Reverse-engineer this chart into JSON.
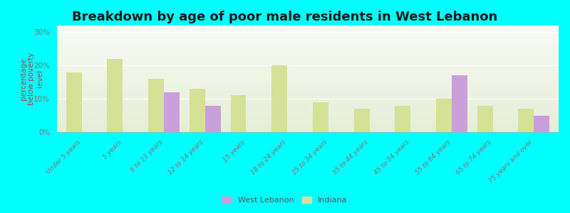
{
  "title": "Breakdown by age of poor male residents in West Lebanon",
  "ylabel": "percentage\nbelow poverty\nlevel",
  "categories": [
    "Under 5 years",
    "5 years",
    "6 to 11 years",
    "12 to 14 years",
    "15 years",
    "18 to 24 years",
    "25 to 34 years",
    "35 to 44 years",
    "45 to 54 years",
    "55 to 64 years",
    "65 to 74 years",
    "75 years and over"
  ],
  "west_lebanon": [
    0,
    0,
    12.0,
    8.0,
    0,
    0,
    0,
    0,
    0,
    17.0,
    0,
    5.0
  ],
  "indiana": [
    18.0,
    22.0,
    16.0,
    13.0,
    11.0,
    20.0,
    9.0,
    7.0,
    8.0,
    10.0,
    8.0,
    7.0
  ],
  "west_lebanon_color": "#c9a0dc",
  "indiana_color": "#d4e196",
  "background_color": "#00ffff",
  "ylim": [
    0,
    32
  ],
  "yticks": [
    0,
    10,
    20,
    30
  ],
  "ytick_labels": [
    "0%",
    "10%",
    "20%",
    "30%"
  ],
  "bar_width": 0.38,
  "title_fontsize": 13,
  "axis_label_fontsize": 7.5,
  "tick_label_fontsize": 6.5,
  "legend_fontsize": 8
}
